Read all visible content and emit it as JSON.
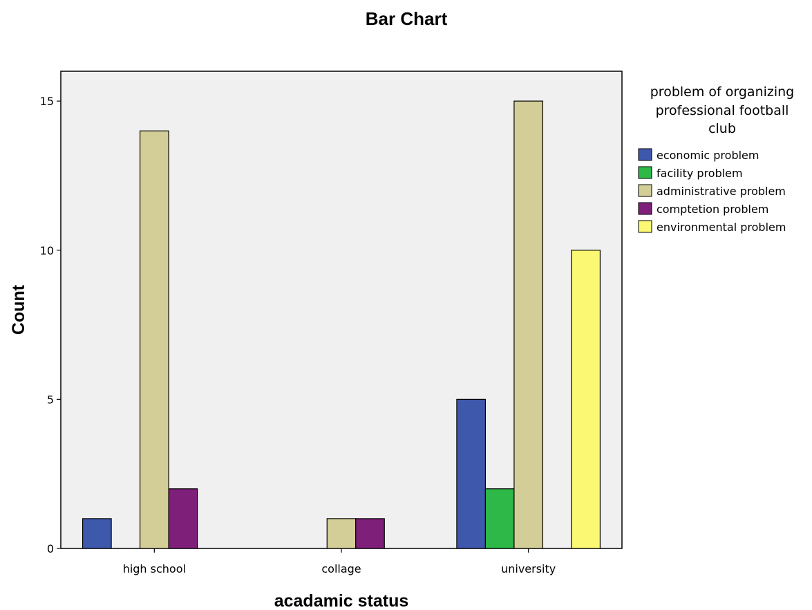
{
  "chart_data": {
    "type": "bar",
    "title": "Bar Chart",
    "xlabel": "acadamic status",
    "ylabel": "Count",
    "categories": [
      "high school",
      "collage",
      "university"
    ],
    "ylim": [
      0,
      16
    ],
    "yticks": [
      0,
      5,
      10,
      15
    ],
    "grid": false,
    "legend_title": "problem of organizing professional football club",
    "legend_title_lines": [
      "problem of organizing",
      "professional football",
      "club"
    ],
    "legend_position": "right",
    "series": [
      {
        "name": "economic problem",
        "color": "#3e58ac",
        "values": [
          1,
          0,
          5
        ]
      },
      {
        "name": "facility problem",
        "color": "#2eb848",
        "values": [
          0,
          0,
          2
        ]
      },
      {
        "name": "administrative problem",
        "color": "#d3ce97",
        "values": [
          14,
          1,
          15
        ]
      },
      {
        "name": "comptetion problem",
        "color": "#7e1f79",
        "values": [
          2,
          1,
          0
        ]
      },
      {
        "name": "environmental problem",
        "color": "#fbf873",
        "values": [
          0,
          0,
          10
        ]
      }
    ],
    "plot_background": "#f0f0f0",
    "bar_outline": "#000000"
  }
}
